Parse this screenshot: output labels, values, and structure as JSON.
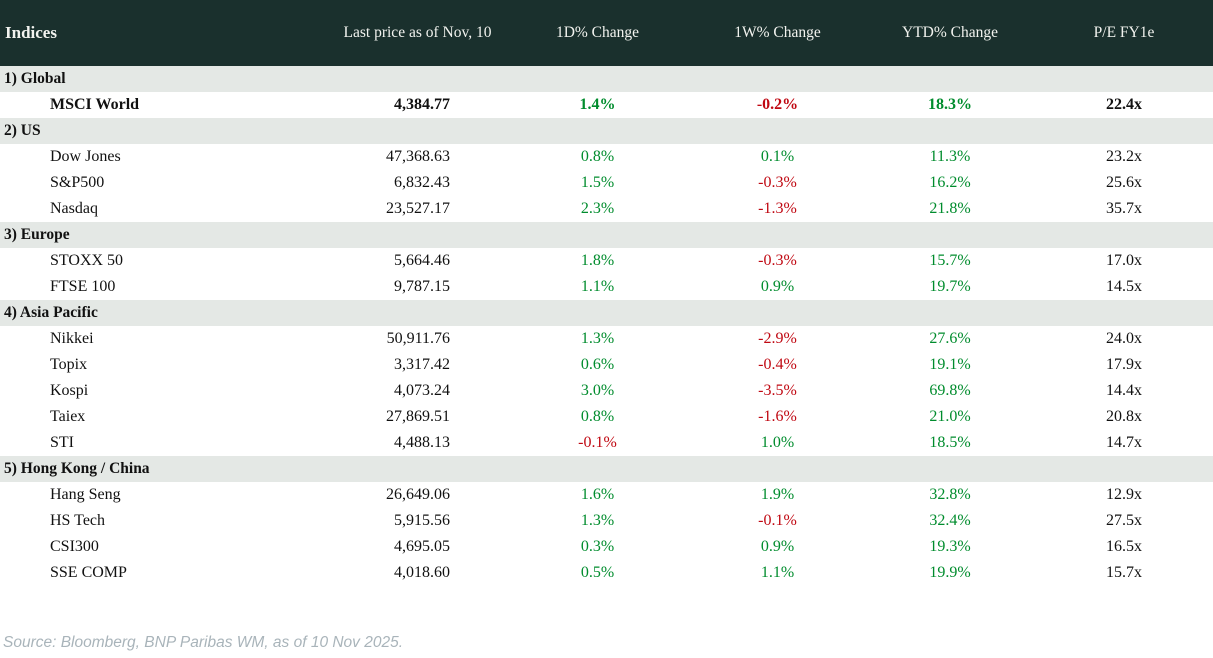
{
  "chart_data": {
    "type": "table",
    "title": "Indices",
    "columns": [
      "Last price as of Nov, 10",
      "1D% Change",
      "1W% Change",
      "YTD% Change",
      "P/E FY1e"
    ],
    "sections": [
      {
        "label": "1) Global",
        "rows": [
          {
            "name": "MSCI World",
            "last_price": "4,384.77",
            "chg_1d": "1.4%",
            "chg_1w": "-0.2%",
            "chg_ytd": "18.3%",
            "pe_fy1e": "22.4x",
            "bold": true
          }
        ]
      },
      {
        "label": "2) US",
        "rows": [
          {
            "name": "Dow Jones",
            "last_price": "47,368.63",
            "chg_1d": "0.8%",
            "chg_1w": "0.1%",
            "chg_ytd": "11.3%",
            "pe_fy1e": "23.2x"
          },
          {
            "name": "S&P500",
            "last_price": "6,832.43",
            "chg_1d": "1.5%",
            "chg_1w": "-0.3%",
            "chg_ytd": "16.2%",
            "pe_fy1e": "25.6x"
          },
          {
            "name": "Nasdaq",
            "last_price": "23,527.17",
            "chg_1d": "2.3%",
            "chg_1w": "-1.3%",
            "chg_ytd": "21.8%",
            "pe_fy1e": "35.7x"
          }
        ]
      },
      {
        "label": "3) Europe",
        "rows": [
          {
            "name": "STOXX 50",
            "last_price": "5,664.46",
            "chg_1d": "1.8%",
            "chg_1w": "-0.3%",
            "chg_ytd": "15.7%",
            "pe_fy1e": "17.0x"
          },
          {
            "name": "FTSE 100",
            "last_price": "9,787.15",
            "chg_1d": "1.1%",
            "chg_1w": "0.9%",
            "chg_ytd": "19.7%",
            "pe_fy1e": "14.5x"
          }
        ]
      },
      {
        "label": "4) Asia Pacific",
        "rows": [
          {
            "name": "Nikkei",
            "last_price": "50,911.76",
            "chg_1d": "1.3%",
            "chg_1w": "-2.9%",
            "chg_ytd": "27.6%",
            "pe_fy1e": "24.0x"
          },
          {
            "name": "Topix",
            "last_price": "3,317.42",
            "chg_1d": "0.6%",
            "chg_1w": "-0.4%",
            "chg_ytd": "19.1%",
            "pe_fy1e": "17.9x"
          },
          {
            "name": "Kospi",
            "last_price": "4,073.24",
            "chg_1d": "3.0%",
            "chg_1w": "-3.5%",
            "chg_ytd": "69.8%",
            "pe_fy1e": "14.4x"
          },
          {
            "name": "Taiex",
            "last_price": "27,869.51",
            "chg_1d": "0.8%",
            "chg_1w": "-1.6%",
            "chg_ytd": "21.0%",
            "pe_fy1e": "20.8x"
          },
          {
            "name": "STI",
            "last_price": "4,488.13",
            "chg_1d": "-0.1%",
            "chg_1w": "1.0%",
            "chg_ytd": "18.5%",
            "pe_fy1e": "14.7x"
          }
        ]
      },
      {
        "label": "5) Hong Kong / China",
        "rows": [
          {
            "name": "Hang Seng",
            "last_price": "26,649.06",
            "chg_1d": "1.6%",
            "chg_1w": "1.9%",
            "chg_ytd": "32.8%",
            "pe_fy1e": "12.9x"
          },
          {
            "name": "HS Tech",
            "last_price": "5,915.56",
            "chg_1d": "1.3%",
            "chg_1w": "-0.1%",
            "chg_ytd": "32.4%",
            "pe_fy1e": "27.5x"
          },
          {
            "name": "CSI300",
            "last_price": "4,695.05",
            "chg_1d": "0.3%",
            "chg_1w": "0.9%",
            "chg_ytd": "19.3%",
            "pe_fy1e": "16.5x"
          },
          {
            "name": "SSE COMP",
            "last_price": "4,018.60",
            "chg_1d": "0.5%",
            "chg_1w": "1.1%",
            "chg_ytd": "19.9%",
            "pe_fy1e": "15.7x"
          }
        ]
      }
    ]
  },
  "footer": {
    "source": "Source: Bloomberg, BNP Paribas WM, as of 10 Nov 2025."
  },
  "colors": {
    "positive": "#008c2d",
    "negative": "#c00812",
    "header_bg": "#1a302d",
    "header_text": "#f2f3ef",
    "section_bg": "#e4e8e5",
    "row_bg": "#ffffff",
    "footer_text": "#a9b4ba"
  }
}
